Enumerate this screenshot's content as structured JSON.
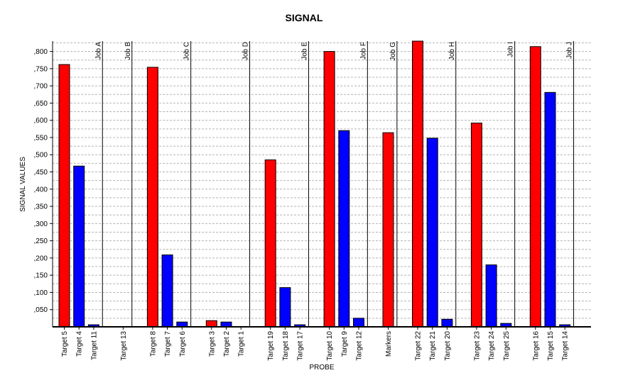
{
  "chart_data": {
    "type": "bar",
    "title": "SIGNAL",
    "xlabel": "PROBE",
    "ylabel": "SIGNAL VALUES",
    "ylim": [
      0,
      0.83
    ],
    "yticks": [
      0.05,
      0.1,
      0.15,
      0.2,
      0.25,
      0.3,
      0.35,
      0.4,
      0.45,
      0.5,
      0.55,
      0.6,
      0.65,
      0.7,
      0.75,
      0.8
    ],
    "ytick_labels": [
      ",050",
      ",100",
      ",150",
      ",200",
      ",250",
      ",300",
      ",350",
      ",400",
      ",450",
      ",500",
      ",550",
      ",600",
      ",650",
      ",700",
      ",750",
      ",800"
    ],
    "grid": true,
    "colors": {
      "red": "#ff0000",
      "blue": "#0000ff",
      "frame": "#000000",
      "grid": "#b4b4b4"
    },
    "categories": [
      "Target 5",
      "Target 4",
      "Target 11",
      "Target 13",
      "Target 8",
      "Target 7",
      "Target 6",
      "Target 3",
      "Target 2",
      "Target 1",
      "Target 19",
      "Target 18",
      "Target 17",
      "Target 10",
      "Target 9",
      "Target 12",
      "Markers",
      "Target 22",
      "Target 21",
      "Target 20",
      "Target 23",
      "Target 24",
      "Target 25",
      "Target 16",
      "Target 15",
      "Target 14"
    ],
    "values": [
      0.762,
      0.467,
      0.006,
      0.0,
      0.754,
      0.209,
      0.014,
      0.018,
      0.014,
      0.0,
      0.485,
      0.114,
      0.006,
      0.8,
      0.57,
      0.025,
      0.564,
      0.83,
      0.548,
      0.022,
      0.592,
      0.18,
      0.01,
      0.814,
      0.681,
      0.006
    ],
    "bar_colors": [
      "red",
      "blue",
      "blue",
      "red",
      "red",
      "blue",
      "blue",
      "red",
      "blue",
      "blue",
      "red",
      "blue",
      "blue",
      "red",
      "blue",
      "blue",
      "red",
      "red",
      "blue",
      "blue",
      "red",
      "blue",
      "blue",
      "red",
      "blue",
      "blue"
    ],
    "groups": [
      {
        "label": "Job A",
        "members": [
          0,
          1,
          2
        ]
      },
      {
        "label": "Job B",
        "members": [
          3
        ]
      },
      {
        "label": "Job C",
        "members": [
          4,
          5,
          6
        ]
      },
      {
        "label": "Job D",
        "members": [
          7,
          8,
          9
        ]
      },
      {
        "label": "Job E",
        "members": [
          10,
          11,
          12
        ]
      },
      {
        "label": "Job F",
        "members": [
          13,
          14,
          15
        ]
      },
      {
        "label": "Job G",
        "members": [
          16
        ]
      },
      {
        "label": "Job H",
        "members": [
          17,
          18,
          19
        ]
      },
      {
        "label": "Job I",
        "members": [
          20,
          21,
          22
        ]
      },
      {
        "label": "Job J",
        "members": [
          23,
          24,
          25
        ]
      }
    ]
  }
}
